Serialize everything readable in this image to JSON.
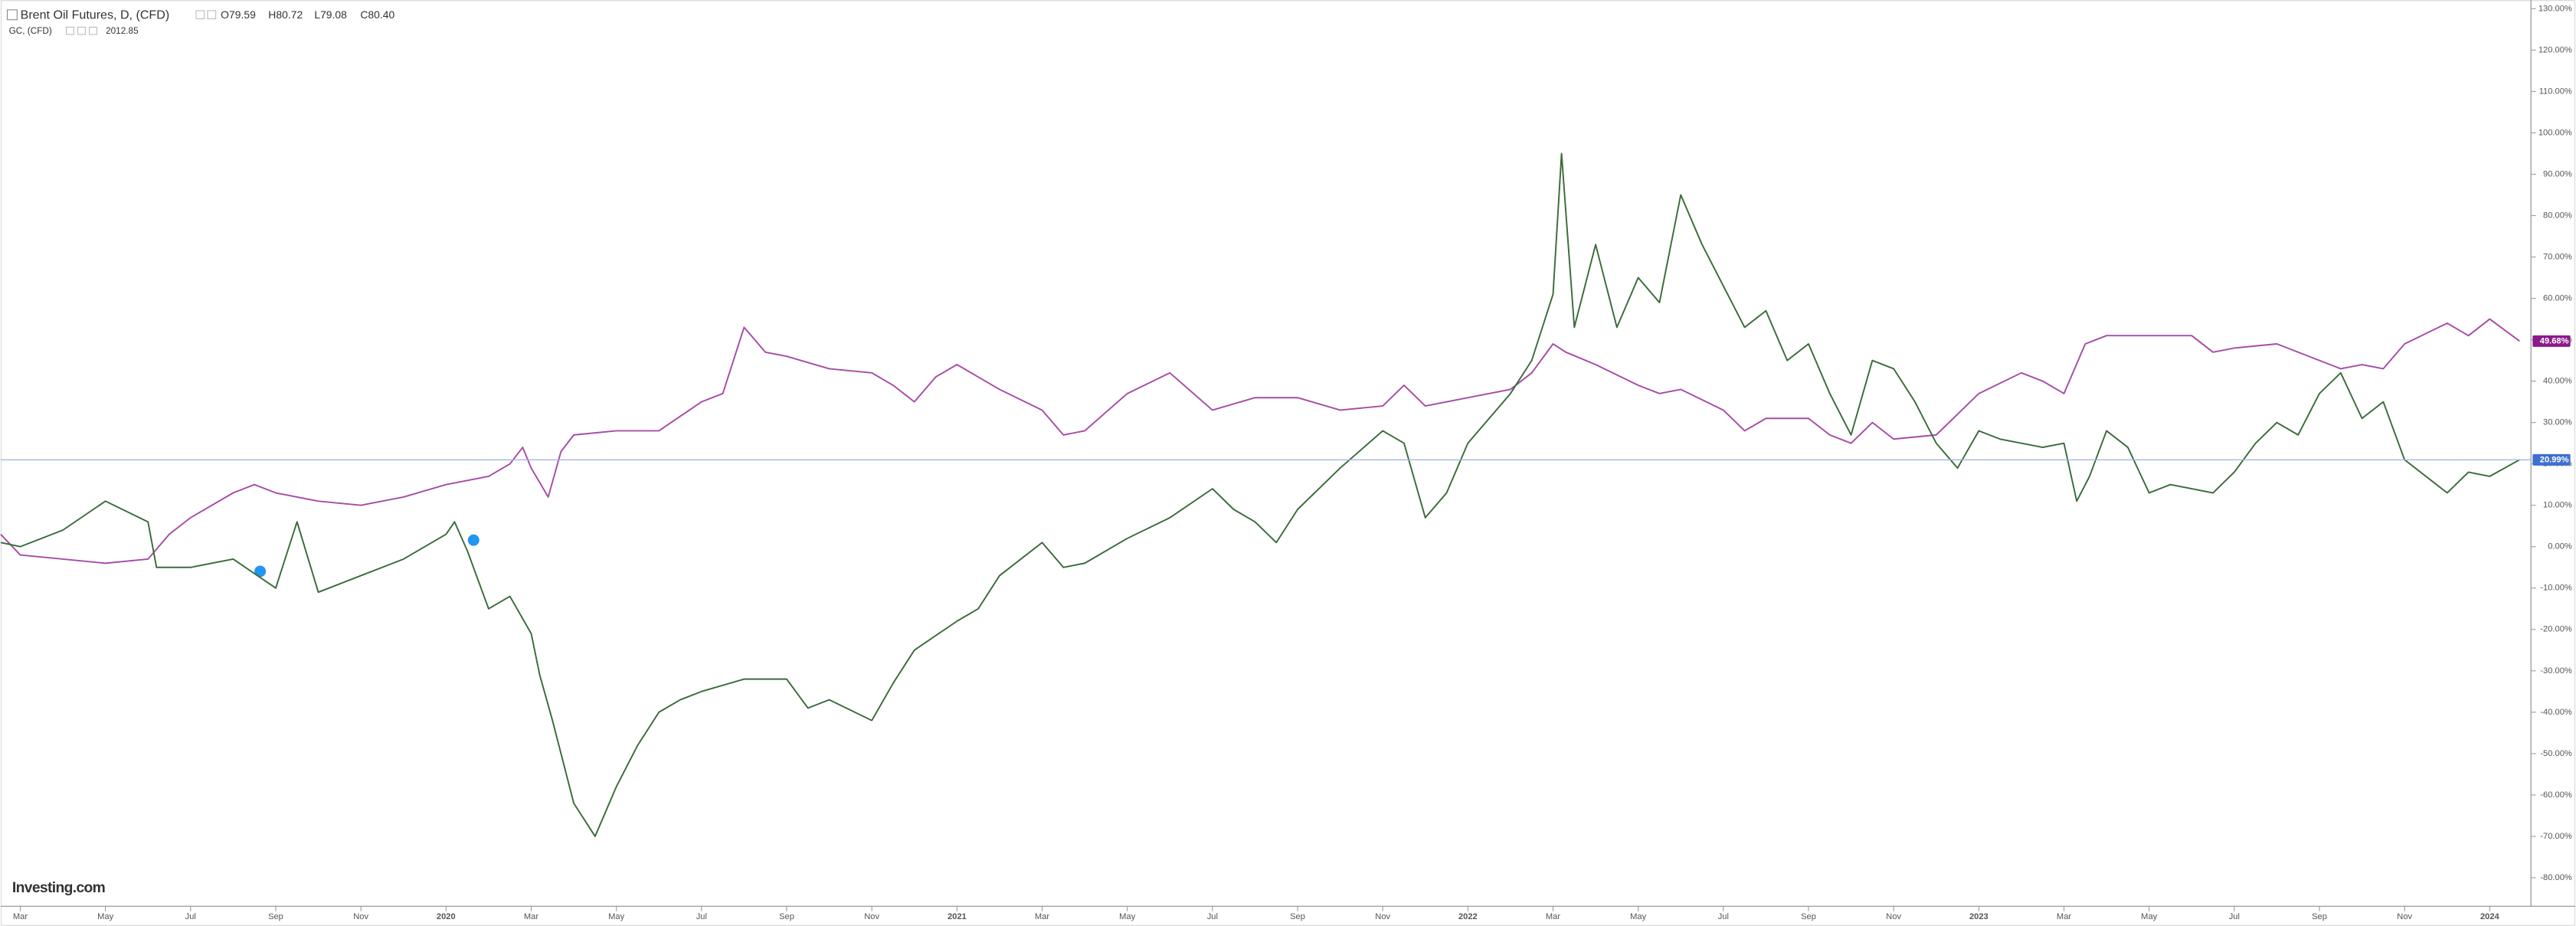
{
  "chart_data": {
    "type": "line",
    "series": [
      {
        "name": "Brent Oil Futures, D, (CFD)",
        "ohlc_labels": [
          "O79.59",
          "H80.72",
          "L79.08",
          "C80.40"
        ],
        "color": "#3a6b3a",
        "tag_color": "#3f6fd0",
        "last_value_label": "20.99%",
        "x": [
          -0.46,
          0,
          1,
          2,
          3,
          3.2,
          4,
          5,
          6,
          6.5,
          7,
          8,
          9,
          10,
          10.2,
          10.5,
          11,
          11.5,
          12,
          12.2,
          12.5,
          13,
          13.5,
          14,
          14.5,
          15,
          15.5,
          16,
          17,
          18,
          18.5,
          19,
          20,
          20.5,
          21,
          22,
          22.5,
          23,
          24,
          24.5,
          25,
          26,
          27,
          28,
          28.5,
          29,
          29.5,
          30,
          31,
          32,
          32.5,
          33,
          33.5,
          34,
          35,
          35.5,
          36,
          36.2,
          36.5,
          37,
          37.5,
          38,
          38.5,
          39,
          39.5,
          40,
          40.5,
          41,
          41.5,
          42,
          42.5,
          43,
          43.5,
          44,
          44.5,
          45,
          45.5,
          46,
          46.5,
          47,
          47.5,
          48,
          48.3,
          48.6,
          49,
          49.5,
          50,
          50.5,
          51,
          51.5,
          52,
          52.5,
          53,
          53.5,
          54,
          54.5,
          55,
          55.5,
          56,
          56.5,
          57,
          57.5,
          58,
          58.7
        ],
        "values": [
          1,
          0,
          4,
          11,
          6,
          -5,
          -5,
          -3,
          -10,
          6,
          -11,
          -7,
          -3,
          3,
          6,
          -1,
          -15,
          -12,
          -21,
          -31,
          -42,
          -62,
          -70,
          -58,
          -48,
          -40,
          -37,
          -35,
          -32,
          -32,
          -39,
          -37,
          -42,
          -33,
          -25,
          -18,
          -15,
          -7,
          1,
          -5,
          -4,
          2,
          7,
          14,
          9,
          6,
          1,
          9,
          19,
          28,
          25,
          7,
          13,
          25,
          37,
          45,
          61,
          95,
          53,
          73,
          53,
          65,
          59,
          85,
          73,
          63,
          53,
          57,
          45,
          49,
          37,
          27,
          45,
          43,
          35,
          25,
          19,
          28,
          26,
          25,
          24,
          25,
          11,
          17,
          28,
          24,
          13,
          15,
          14,
          13,
          18,
          25,
          30,
          27,
          37,
          42,
          31,
          35,
          21,
          17,
          13,
          18,
          17,
          20.99
        ]
      },
      {
        "name": "GC, (CFD)",
        "last_price_label": "2012.85",
        "color": "#a64ca6",
        "tag_color": "#8b1a8b",
        "last_value_label": "49.68%",
        "x": [
          -0.46,
          0,
          1,
          2,
          3,
          3.5,
          4,
          5,
          5.5,
          6,
          7,
          8,
          9,
          10,
          10.5,
          11,
          11.5,
          11.8,
          12,
          12.4,
          12.7,
          13,
          14,
          15,
          16,
          16.5,
          17,
          17.5,
          18,
          19,
          20,
          20.5,
          21,
          21.5,
          22,
          23,
          24,
          24.5,
          25,
          26,
          27,
          28,
          29,
          30,
          31,
          32,
          32.5,
          33,
          34,
          35,
          35.5,
          36,
          36.3,
          37,
          38,
          38.5,
          39,
          40,
          40.5,
          41,
          42,
          42.5,
          43,
          43.5,
          44,
          45,
          45.5,
          46,
          47,
          47.5,
          48,
          48.5,
          49,
          50,
          51,
          51.5,
          52,
          53,
          54,
          54.5,
          55,
          55.5,
          56,
          57,
          57.5,
          58,
          58.7
        ],
        "values": [
          3,
          -2,
          -3,
          -4,
          -3,
          3,
          7,
          13,
          15,
          13,
          11,
          10,
          12,
          15,
          16,
          17,
          20,
          24,
          19,
          12,
          23,
          27,
          28,
          28,
          35,
          37,
          53,
          47,
          46,
          43,
          42,
          39,
          35,
          41,
          44,
          38,
          33,
          27,
          28,
          37,
          42,
          33,
          36,
          36,
          33,
          34,
          39,
          34,
          36,
          38,
          42,
          49,
          47,
          44,
          39,
          37,
          38,
          33,
          28,
          31,
          31,
          27,
          25,
          30,
          26,
          27,
          32,
          37,
          42,
          40,
          37,
          49,
          51,
          51,
          51,
          47,
          48,
          49,
          45,
          43,
          44,
          43,
          49,
          54,
          51,
          55,
          49.68
        ]
      }
    ],
    "xlim": [
      -0.46,
      58.93
    ],
    "xticks": [
      {
        "value": 0,
        "label": "Mar"
      },
      {
        "value": 2,
        "label": "May"
      },
      {
        "value": 4,
        "label": "Jul"
      },
      {
        "value": 6,
        "label": "Sep"
      },
      {
        "value": 8,
        "label": "Nov"
      },
      {
        "value": 10,
        "label": "2020"
      },
      {
        "value": 12,
        "label": "Mar"
      },
      {
        "value": 14,
        "label": "May"
      },
      {
        "value": 16,
        "label": "Jul"
      },
      {
        "value": 18,
        "label": "Sep"
      },
      {
        "value": 20,
        "label": "Nov"
      },
      {
        "value": 22,
        "label": "2021"
      },
      {
        "value": 24,
        "label": "Mar"
      },
      {
        "value": 26,
        "label": "May"
      },
      {
        "value": 28,
        "label": "Jul"
      },
      {
        "value": 30,
        "label": "Sep"
      },
      {
        "value": 32,
        "label": "Nov"
      },
      {
        "value": 34,
        "label": "2022"
      },
      {
        "value": 36,
        "label": "Mar"
      },
      {
        "value": 38,
        "label": "May"
      },
      {
        "value": 40,
        "label": "Jul"
      },
      {
        "value": 42,
        "label": "Sep"
      },
      {
        "value": 44,
        "label": "Nov"
      },
      {
        "value": 46,
        "label": "2023"
      },
      {
        "value": 48,
        "label": "Mar"
      },
      {
        "value": 50,
        "label": "May"
      },
      {
        "value": 52,
        "label": "Jul"
      },
      {
        "value": 54,
        "label": "Sep"
      },
      {
        "value": 56,
        "label": "Nov"
      },
      {
        "value": 58,
        "label": "2024"
      }
    ],
    "ylim": [
      -86.9,
      132.1
    ],
    "yticks": [
      {
        "value": 130,
        "label": "130.00%"
      },
      {
        "value": 120,
        "label": "120.00%"
      },
      {
        "value": 110,
        "label": "110.00%"
      },
      {
        "value": 100,
        "label": "100.00%"
      },
      {
        "value": 90,
        "label": "90.00%"
      },
      {
        "value": 80,
        "label": "80.00%"
      },
      {
        "value": 70,
        "label": "70.00%"
      },
      {
        "value": 60,
        "label": "60.00%"
      },
      {
        "value": 50,
        "label": "50.00%"
      },
      {
        "value": 40,
        "label": "40.00%"
      },
      {
        "value": 30,
        "label": "30.00%"
      },
      {
        "value": 20,
        "label": "20.00%"
      },
      {
        "value": 10,
        "label": "10.00%"
      },
      {
        "value": 0,
        "label": "0.00%"
      },
      {
        "value": -10,
        "label": "-10.00%"
      },
      {
        "value": -20,
        "label": "-20.00%"
      },
      {
        "value": -30,
        "label": "-30.00%"
      },
      {
        "value": -40,
        "label": "-40.00%"
      },
      {
        "value": -50,
        "label": "-50.00%"
      },
      {
        "value": -60,
        "label": "-60.00%"
      },
      {
        "value": -70,
        "label": "-70.00%"
      },
      {
        "value": -80,
        "label": "-80.00%"
      }
    ],
    "watermark": "Investing.com"
  }
}
